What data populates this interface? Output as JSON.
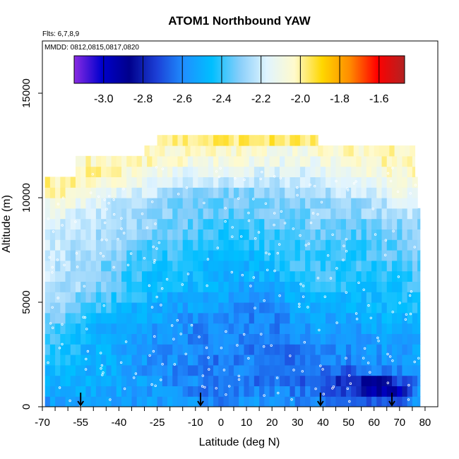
{
  "chart_data": {
    "type": "heatmap",
    "title": "ATOM1 Northbound YAW",
    "subtitle_flights": "Flts: 6,7,8,9",
    "subtitle_dates": "MMDD: 0812,0815,0817,0820",
    "xlabel": "Latitude (deg N)",
    "ylabel": "Altitude (m)",
    "xlim": [
      -70,
      85
    ],
    "ylim": [
      0,
      17500
    ],
    "x_ticks": [
      -70,
      -55,
      -40,
      -25,
      -10,
      0,
      10,
      20,
      30,
      40,
      50,
      60,
      70,
      80
    ],
    "x_tick_labels": [
      "-70",
      "-55",
      "-40",
      "-25",
      "-10",
      "0",
      "10",
      "20",
      "30",
      "40",
      "50",
      "60",
      "70",
      "80"
    ],
    "x_minor_ticks": [
      -65,
      -60,
      -50,
      -45,
      -35,
      -30,
      -20,
      -15,
      -5,
      5,
      15,
      25,
      35,
      45,
      55,
      65,
      75
    ],
    "y_ticks": [
      0,
      5000,
      10000,
      15000
    ],
    "y_tick_labels": [
      "0",
      "5000",
      "10000",
      "15000"
    ],
    "colorbar": {
      "range": [
        -3.15,
        -1.47
      ],
      "ticks": [
        -3.0,
        -2.8,
        -2.6,
        -2.4,
        -2.2,
        -2.0,
        -1.8,
        -1.6
      ],
      "tick_labels": [
        "-3.0",
        "-2.8",
        "-2.6",
        "-2.4",
        "-2.2",
        "-2.0",
        "-1.8",
        "-1.6"
      ],
      "colors": [
        "#8a2be2",
        "#0000cd",
        "#00008b",
        "#1c3fd6",
        "#1e90ff",
        "#00bfff",
        "#87cefa",
        "#e0f4ff",
        "#fffacd",
        "#ffd700",
        "#ff8c00",
        "#ff0000",
        "#b22222"
      ]
    },
    "arrows_latitude": [
      -55,
      -8,
      39,
      67
    ],
    "grid": false,
    "altitude_levels_m": [
      0,
      500,
      1000,
      1500,
      2000,
      2500,
      3000,
      3500,
      4000,
      4500,
      5000,
      5500,
      6000,
      6500,
      7000,
      7500,
      8000,
      8500,
      9000,
      9500,
      10000,
      10500,
      11000,
      11500,
      12000,
      12500
    ],
    "latitude_nodes": [
      -69,
      -60,
      -50,
      -40,
      -30,
      -20,
      -10,
      0,
      10,
      20,
      30,
      40,
      50,
      60,
      70,
      78
    ],
    "profile_yaw": [
      [
        -2.55,
        -2.55,
        -2.55,
        -2.55,
        -2.55,
        -2.56,
        -2.58,
        -2.62,
        -2.58,
        -2.55,
        -2.6,
        -2.62,
        -2.65,
        -2.7,
        -2.72,
        -2.55
      ],
      [
        -2.52,
        -2.51,
        -2.51,
        -2.53,
        -2.56,
        -2.58,
        -2.6,
        -2.64,
        -2.62,
        -2.58,
        -2.63,
        -2.68,
        -2.72,
        -2.92,
        -2.95,
        -2.58
      ],
      [
        -2.5,
        -2.5,
        -2.5,
        -2.52,
        -2.56,
        -2.6,
        -2.6,
        -2.63,
        -2.64,
        -2.63,
        -2.66,
        -2.72,
        -2.78,
        -2.85,
        -2.72,
        -2.6
      ],
      [
        -2.48,
        -2.48,
        -2.5,
        -2.52,
        -2.57,
        -2.6,
        -2.6,
        -2.64,
        -2.62,
        -2.64,
        -2.66,
        -2.68,
        -2.68,
        -2.64,
        -2.6,
        -2.58
      ],
      [
        -2.42,
        -2.45,
        -2.48,
        -2.52,
        -2.56,
        -2.58,
        -2.6,
        -2.63,
        -2.62,
        -2.66,
        -2.63,
        -2.6,
        -2.6,
        -2.58,
        -2.58,
        -2.55
      ],
      [
        -2.4,
        -2.43,
        -2.5,
        -2.52,
        -2.55,
        -2.58,
        -2.6,
        -2.62,
        -2.62,
        -2.66,
        -2.62,
        -2.58,
        -2.58,
        -2.56,
        -2.55,
        -2.52
      ],
      [
        -2.38,
        -2.42,
        -2.5,
        -2.55,
        -2.56,
        -2.58,
        -2.6,
        -2.6,
        -2.62,
        -2.62,
        -2.58,
        -2.58,
        -2.56,
        -2.55,
        -2.55,
        -2.5
      ],
      [
        -2.34,
        -2.4,
        -2.48,
        -2.53,
        -2.55,
        -2.58,
        -2.6,
        -2.6,
        -2.6,
        -2.62,
        -2.56,
        -2.55,
        -2.55,
        -2.53,
        -2.52,
        -2.48
      ],
      [
        -2.3,
        -2.35,
        -2.43,
        -2.5,
        -2.52,
        -2.55,
        -2.57,
        -2.58,
        -2.6,
        -2.62,
        -2.54,
        -2.52,
        -2.52,
        -2.5,
        -2.5,
        -2.45
      ],
      [
        -2.28,
        -2.32,
        -2.38,
        -2.45,
        -2.5,
        -2.52,
        -2.54,
        -2.55,
        -2.58,
        -2.6,
        -2.52,
        -2.5,
        -2.5,
        -2.48,
        -2.48,
        -2.42
      ],
      [
        -2.25,
        -2.28,
        -2.35,
        -2.4,
        -2.45,
        -2.5,
        -2.5,
        -2.52,
        -2.55,
        -2.55,
        -2.5,
        -2.45,
        -2.46,
        -2.45,
        -2.45,
        -2.4
      ],
      [
        -2.22,
        -2.25,
        -2.3,
        -2.38,
        -2.42,
        -2.46,
        -2.47,
        -2.5,
        -2.52,
        -2.52,
        -2.45,
        -2.42,
        -2.42,
        -2.43,
        -2.42,
        -2.4
      ],
      [
        -2.22,
        -2.24,
        -2.28,
        -2.36,
        -2.42,
        -2.44,
        -2.46,
        -2.5,
        -2.48,
        -2.48,
        -2.42,
        -2.4,
        -2.4,
        -2.42,
        -2.4,
        -2.38
      ],
      [
        -2.22,
        -2.24,
        -2.3,
        -2.35,
        -2.4,
        -2.42,
        -2.48,
        -2.52,
        -2.5,
        -2.45,
        -2.38,
        -2.38,
        -2.4,
        -2.4,
        -2.38,
        -2.36
      ],
      [
        -2.2,
        -2.24,
        -2.28,
        -2.32,
        -2.38,
        -2.4,
        -2.45,
        -2.5,
        -2.48,
        -2.42,
        -2.38,
        -2.38,
        -2.4,
        -2.38,
        -2.36,
        -2.34
      ],
      [
        -2.2,
        -2.22,
        -2.25,
        -2.3,
        -2.35,
        -2.38,
        -2.4,
        -2.42,
        -2.42,
        -2.4,
        -2.38,
        -2.37,
        -2.4,
        -2.38,
        -2.36,
        -2.32
      ],
      [
        -2.2,
        -2.22,
        -2.25,
        -2.28,
        -2.32,
        -2.35,
        -2.37,
        -2.4,
        -2.4,
        -2.38,
        -2.36,
        -2.35,
        -2.38,
        -2.35,
        -2.33,
        -2.3
      ],
      [
        -2.18,
        -2.2,
        -2.22,
        -2.26,
        -2.3,
        -2.33,
        -2.35,
        -2.38,
        -2.38,
        -2.36,
        -2.34,
        -2.33,
        -2.35,
        -2.32,
        -2.3,
        -2.28
      ],
      [
        -2.12,
        -2.15,
        -2.2,
        -2.25,
        -2.28,
        -2.32,
        -2.33,
        -2.36,
        -2.36,
        -2.34,
        -2.32,
        -2.3,
        -2.3,
        -2.28,
        -2.25,
        -2.22
      ],
      [
        -2.08,
        -2.08,
        -2.15,
        -2.22,
        -2.25,
        -2.3,
        -2.32,
        -2.34,
        -2.33,
        -2.32,
        -2.3,
        -2.3,
        -2.28,
        -2.26,
        -2.2,
        -2.18
      ],
      [
        -2.02,
        -2.02,
        -2.08,
        -2.15,
        -2.2,
        -2.26,
        -2.3,
        -2.3,
        -2.3,
        -2.28,
        -2.27,
        -2.25,
        -2.22,
        -2.2,
        -2.12,
        -2.1
      ],
      [
        -2.0,
        -1.98,
        -2.02,
        -2.08,
        -2.12,
        -2.18,
        -2.2,
        -2.22,
        -2.22,
        -2.24,
        -2.22,
        -2.2,
        -2.18,
        -2.12,
        -2.1,
        -2.06
      ],
      [
        -2.02,
        -2.0,
        -2.0,
        -2.04,
        -2.08,
        -2.12,
        -2.15,
        -2.15,
        -2.16,
        -2.18,
        -2.18,
        -2.16,
        -2.12,
        -2.08,
        -2.05,
        -2.03
      ],
      [
        -2.05,
        -2.03,
        -2.02,
        -2.02,
        -2.04,
        -2.06,
        -2.08,
        -2.08,
        -2.1,
        -2.12,
        -2.12,
        -2.1,
        -2.06,
        -2.04,
        -2.02,
        -2.0
      ],
      [
        -2.1,
        -2.08,
        -2.05,
        -2.03,
        -2.03,
        -2.04,
        -2.05,
        -2.05,
        -2.06,
        -2.07,
        -2.08,
        -2.06,
        -2.04,
        -2.02,
        -2.0,
        -2.0
      ],
      [
        -2.1,
        -2.08,
        -2.05,
        -2.03,
        -2.0,
        -1.98,
        -1.98,
        -1.96,
        -1.96,
        -1.96,
        -1.97,
        -1.98,
        -2.0,
        -2.0,
        -2.0,
        -2.0
      ]
    ]
  }
}
